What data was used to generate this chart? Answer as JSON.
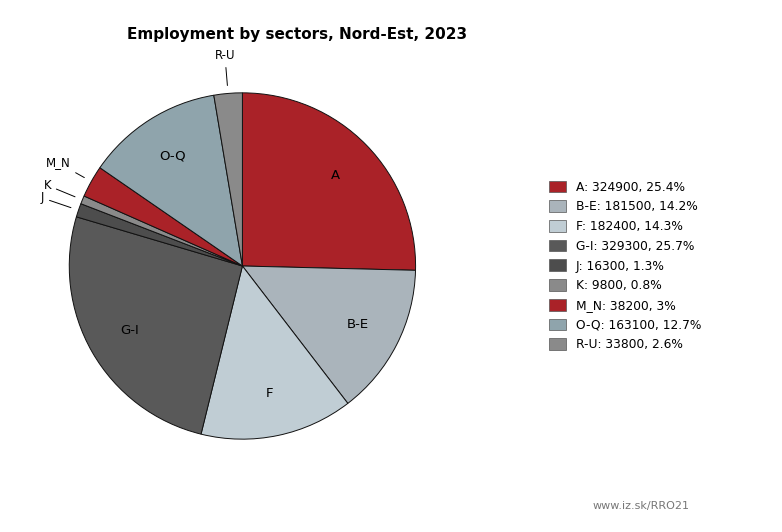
{
  "title": "Employment by sectors, Nord-Est, 2023",
  "sectors": [
    "A",
    "B-E",
    "F",
    "G-I",
    "J",
    "K",
    "M_N",
    "O-Q",
    "R-U"
  ],
  "values": [
    324900,
    181500,
    182400,
    329300,
    16300,
    9800,
    38200,
    163100,
    33800
  ],
  "sector_colors": {
    "A": "#aa2228",
    "B-E": "#aab4bb",
    "F": "#c0cdd4",
    "G-I": "#595959",
    "J": "#4d4d4d",
    "K": "#8a8a8a",
    "M_N": "#aa2228",
    "O-Q": "#8fa4ac",
    "R-U": "#8a8a8a"
  },
  "legend_labels": [
    "A: 324900, 25.4%",
    "B-E: 181500, 14.2%",
    "F: 182400, 14.3%",
    "G-I: 329300, 25.7%",
    "J: 16300, 1.3%",
    "K: 9800, 0.8%",
    "M_N: 38200, 3%",
    "O-Q: 163100, 12.7%",
    "R-U: 33800, 2.6%"
  ],
  "legend_colors": [
    "#aa2228",
    "#aab4bb",
    "#c0cdd4",
    "#595959",
    "#4d4d4d",
    "#8a8a8a",
    "#aa2228",
    "#8fa4ac",
    "#8a8a8a"
  ],
  "watermark": "www.iz.sk/RRO21",
  "background_color": "#ffffff",
  "startangle": 90
}
